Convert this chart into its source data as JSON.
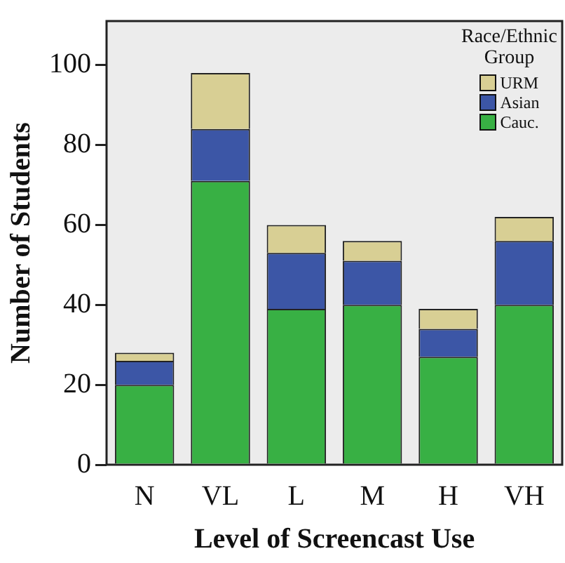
{
  "chart_data": {
    "type": "bar",
    "stacked": true,
    "xlabel": "Level of Screencast Use",
    "ylabel": "Number of Students",
    "legend_title": "Race/Ethnic\nGroup",
    "legend": "top right",
    "categories": [
      "N",
      "VL",
      "L",
      "M",
      "H",
      "VH"
    ],
    "series": [
      {
        "name": "Cauc.",
        "color": "#38b044",
        "values": [
          20,
          71,
          39,
          40,
          27,
          40
        ]
      },
      {
        "name": "Asian",
        "color": "#3c56a6",
        "values": [
          6,
          13,
          14,
          11,
          7,
          16
        ]
      },
      {
        "name": "URM",
        "color": "#d8cf94",
        "values": [
          2,
          14,
          7,
          5,
          5,
          6
        ]
      }
    ],
    "ylim": [
      0,
      111
    ],
    "yticks": [
      0,
      20,
      40,
      60,
      80,
      100
    ],
    "grid": false
  }
}
